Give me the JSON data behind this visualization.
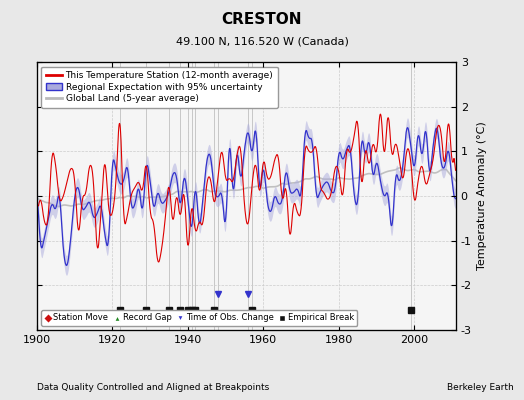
{
  "title": "CRESTON",
  "subtitle": "49.100 N, 116.520 W (Canada)",
  "ylabel": "Temperature Anomaly (°C)",
  "xlabel_left": "Data Quality Controlled and Aligned at Breakpoints",
  "xlabel_right": "Berkeley Earth",
  "ylim": [
    -3,
    3
  ],
  "xlim": [
    1900,
    2011
  ],
  "yticks": [
    -3,
    -2,
    -1,
    0,
    1,
    2,
    3
  ],
  "xticks": [
    1900,
    1920,
    1940,
    1960,
    1980,
    2000
  ],
  "bg_color": "#e8e8e8",
  "plot_bg_color": "#f5f5f5",
  "grid_color": "#cccccc",
  "station_line_color": "#dd0000",
  "regional_line_color": "#3333cc",
  "regional_fill_color": "#aaaadd",
  "global_line_color": "#bbbbbb",
  "empirical_breaks": [
    1922,
    1929,
    1935,
    1938,
    1940,
    1941,
    1942,
    1947,
    1957,
    1999
  ],
  "time_obs_changes": [
    1948,
    1956
  ],
  "record_gaps": [],
  "station_moves": [],
  "seed": 12345
}
